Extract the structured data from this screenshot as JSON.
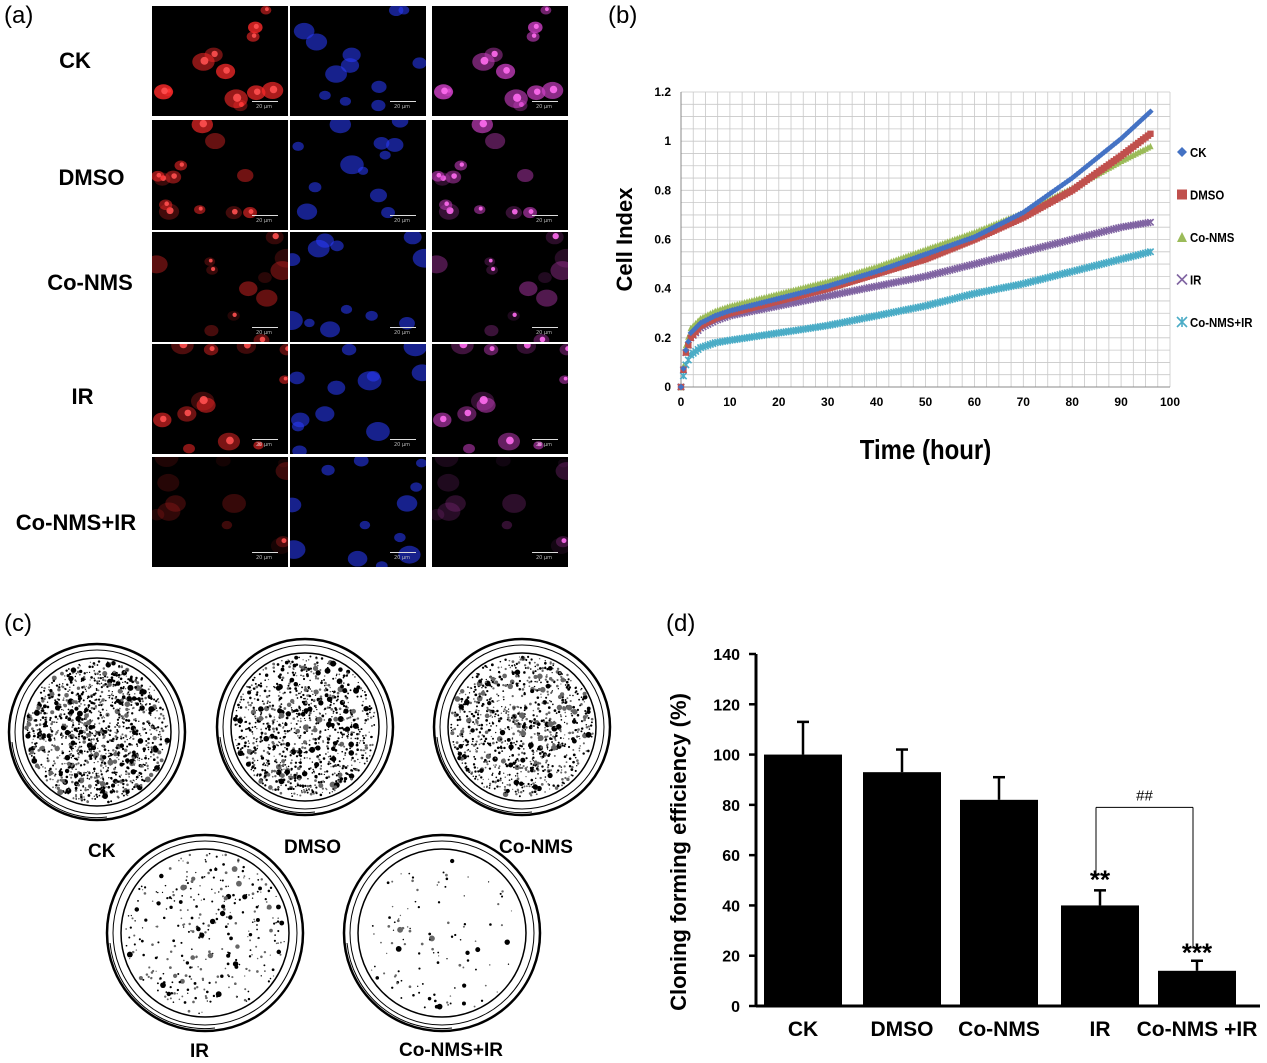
{
  "panels": {
    "a": "(a)",
    "b": "(b)",
    "c": "(c)",
    "d": "(d)"
  },
  "panel_a": {
    "rows": [
      "CK",
      "DMSO",
      "Co-NMS",
      "IR",
      "Co-NMS+IR"
    ],
    "scale_text": "20 μm",
    "colors": {
      "red_stain": "#ff2a2a",
      "blue_stain": "#2a3cff",
      "merge": "#d040c8"
    }
  },
  "panel_c": {
    "dishes": [
      "CK",
      "DMSO",
      "Co-NMS",
      "IR",
      "Co-NMS+IR"
    ],
    "colony_density": [
      0.9,
      0.75,
      0.7,
      0.25,
      0.08
    ]
  },
  "chart_data": [
    {
      "type": "line",
      "panel": "b",
      "xlabel": "Time (hour)",
      "ylabel": "Cell Index",
      "xlim": [
        0,
        100
      ],
      "ylim": [
        0,
        1.2
      ],
      "xticks": [
        0,
        10,
        20,
        30,
        40,
        50,
        60,
        70,
        80,
        90,
        100
      ],
      "yticks": [
        "0",
        "0.2",
        "0.4",
        "0.6",
        "0.8",
        "1",
        "1.2"
      ],
      "grid": true,
      "legend_position": "right",
      "series": [
        {
          "name": "CK",
          "marker": "diamond",
          "color": "#4472c4",
          "x": [
            0,
            1,
            2,
            4,
            7,
            10,
            20,
            30,
            40,
            50,
            60,
            70,
            80,
            90,
            96
          ],
          "y": [
            0.0,
            0.15,
            0.22,
            0.26,
            0.29,
            0.31,
            0.36,
            0.41,
            0.47,
            0.54,
            0.61,
            0.71,
            0.85,
            1.01,
            1.12
          ]
        },
        {
          "name": "DMSO",
          "marker": "square",
          "color": "#c0504d",
          "x": [
            0,
            1,
            2,
            4,
            7,
            10,
            20,
            30,
            40,
            50,
            60,
            70,
            80,
            90,
            96
          ],
          "y": [
            0.0,
            0.14,
            0.2,
            0.25,
            0.28,
            0.3,
            0.35,
            0.4,
            0.46,
            0.52,
            0.6,
            0.69,
            0.8,
            0.94,
            1.03
          ]
        },
        {
          "name": "Co-NMS",
          "marker": "triangle",
          "color": "#9bbb59",
          "x": [
            0,
            1,
            2,
            4,
            7,
            10,
            20,
            30,
            40,
            50,
            60,
            70,
            80,
            90,
            96
          ],
          "y": [
            0.0,
            0.17,
            0.24,
            0.28,
            0.31,
            0.33,
            0.38,
            0.43,
            0.49,
            0.56,
            0.63,
            0.71,
            0.81,
            0.92,
            0.98
          ]
        },
        {
          "name": "IR",
          "marker": "x",
          "color": "#8064a2",
          "x": [
            0,
            1,
            2,
            4,
            7,
            10,
            20,
            30,
            40,
            50,
            60,
            70,
            80,
            90,
            96
          ],
          "y": [
            0.0,
            0.14,
            0.2,
            0.24,
            0.27,
            0.29,
            0.33,
            0.37,
            0.41,
            0.45,
            0.5,
            0.55,
            0.6,
            0.65,
            0.67
          ]
        },
        {
          "name": "Co-NMS+IR",
          "marker": "star",
          "color": "#4bacc6",
          "x": [
            0,
            1,
            2,
            4,
            7,
            10,
            20,
            30,
            40,
            50,
            60,
            70,
            80,
            90,
            96
          ],
          "y": [
            0.0,
            0.09,
            0.13,
            0.16,
            0.18,
            0.19,
            0.22,
            0.25,
            0.29,
            0.33,
            0.38,
            0.42,
            0.47,
            0.52,
            0.55
          ]
        }
      ]
    },
    {
      "type": "bar",
      "panel": "d",
      "ylabel": "Cloning forming efficiency (%)",
      "xlabel": "",
      "categories": [
        "CK",
        "DMSO",
        "Co-NMS",
        "IR",
        "Co-NMS +IR"
      ],
      "values": [
        100,
        93,
        82,
        40,
        14
      ],
      "errors": [
        13,
        9,
        9,
        6,
        4
      ],
      "ylim": [
        0,
        140
      ],
      "yticks": [
        0,
        20,
        40,
        60,
        80,
        100,
        120,
        140
      ],
      "bar_color": "#000000",
      "annotations": {
        "IR": "**",
        "Co-NMS +IR": "***",
        "bracket": "##"
      }
    }
  ]
}
